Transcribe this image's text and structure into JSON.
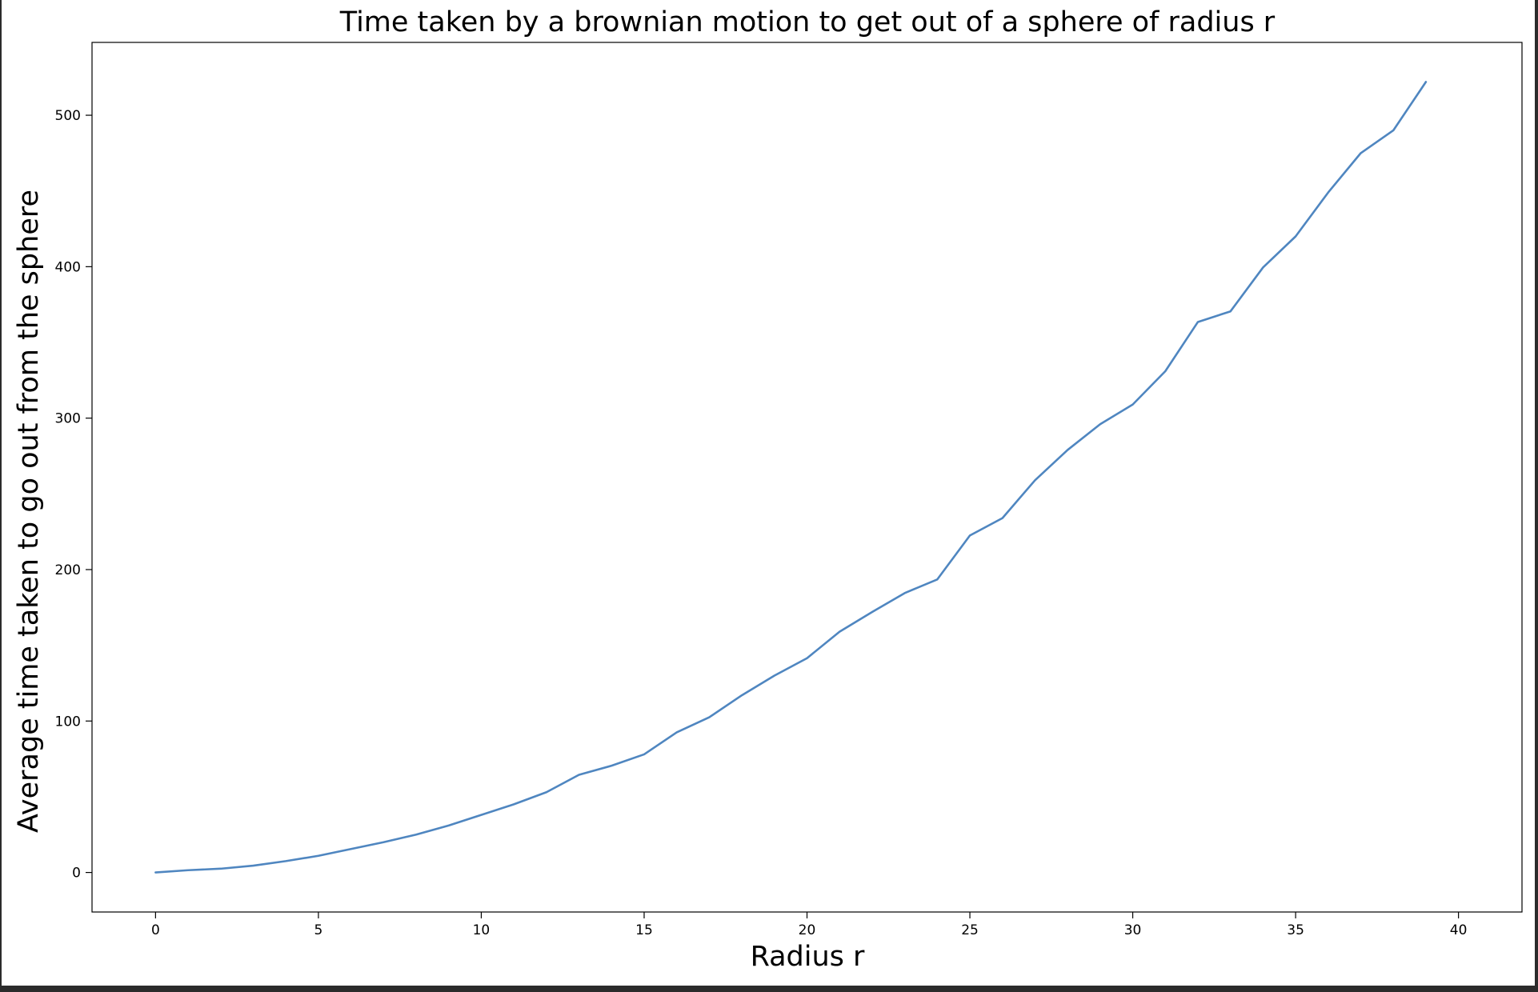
{
  "chart_data": {
    "type": "line",
    "title": "Time taken by a brownian motion to get out of a sphere of radius r",
    "xlabel": "Radius r",
    "ylabel": "Average time taken to go out from the sphere",
    "xlim": [
      -1.95,
      41.95
    ],
    "ylim": [
      -26.1,
      548.1
    ],
    "x_ticks": [
      0,
      5,
      10,
      15,
      20,
      25,
      30,
      35,
      40
    ],
    "y_ticks": [
      0,
      100,
      200,
      300,
      400,
      500
    ],
    "x_tick_labels": [
      "0",
      "5",
      "10",
      "15",
      "20",
      "25",
      "30",
      "35",
      "40"
    ],
    "y_tick_labels": [
      "0",
      "100",
      "200",
      "300",
      "400",
      "500"
    ],
    "grid": false,
    "series": [
      {
        "color": "#4f86c0",
        "x": [
          0,
          1,
          2,
          3,
          4,
          5,
          6,
          7,
          8,
          9,
          10,
          11,
          12,
          13,
          14,
          15,
          16,
          17,
          18,
          19,
          20,
          21,
          22,
          23,
          24,
          25,
          26,
          27,
          28,
          29,
          30,
          31,
          32,
          33,
          34,
          35,
          36,
          37,
          38,
          39
        ],
        "y": [
          0,
          1.5,
          2.5,
          4.5,
          7.5,
          11,
          15.5,
          20,
          25,
          31,
          38,
          45,
          53,
          64.5,
          70.5,
          78,
          92.5,
          102.5,
          117,
          130,
          141.5,
          159,
          172,
          184.5,
          193.5,
          222.5,
          234,
          259,
          279,
          296,
          309,
          331,
          363.5,
          370.5,
          399.5,
          420,
          449,
          475,
          490,
          522
        ]
      }
    ]
  }
}
